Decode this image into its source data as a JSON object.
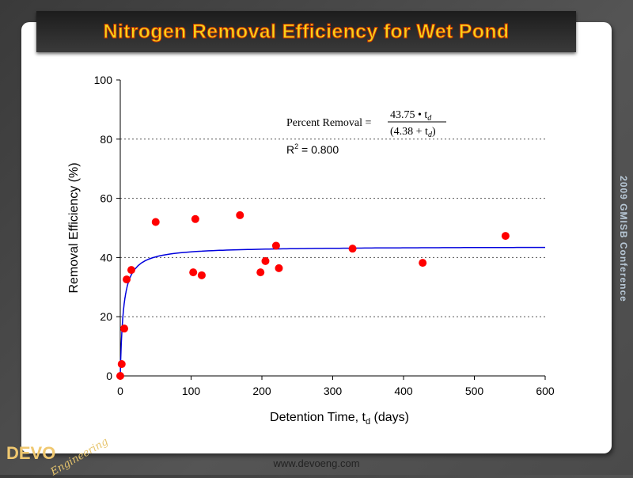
{
  "slide": {
    "title": "Nitrogen Removal  Efficiency for Wet Pond",
    "side_text": "2009 GMISB Conference",
    "url": "www.devoeng.com",
    "logo_text": "DEVO",
    "logo_script": "Engineering"
  },
  "chart_data": {
    "type": "scatter",
    "xlabel": "Detention Time, t",
    "xlabel_sub": "d",
    "xlabel_suffix": " (days)",
    "ylabel": "Removal Efficiency (%)",
    "xlim": [
      0,
      600
    ],
    "ylim": [
      0,
      100
    ],
    "xticks": [
      0,
      100,
      200,
      300,
      400,
      500,
      600
    ],
    "yticks": [
      0,
      20,
      40,
      60,
      80,
      100
    ],
    "grid": "horizontal dotted",
    "points": [
      [
        0,
        0
      ],
      [
        2,
        4
      ],
      [
        5.6,
        16
      ],
      [
        9,
        32.6
      ],
      [
        15.6,
        35.8
      ],
      [
        50,
        52
      ],
      [
        103,
        35
      ],
      [
        106,
        53
      ],
      [
        115,
        34
      ],
      [
        169,
        54.3
      ],
      [
        198,
        35
      ],
      [
        205,
        38.8
      ],
      [
        220,
        44
      ],
      [
        224,
        36.4
      ],
      [
        328,
        43
      ],
      [
        427,
        38.2
      ],
      [
        544,
        47.3
      ]
    ],
    "fit": {
      "a": 43.75,
      "b": 4.38
    },
    "equation_label": "Percent Removal =",
    "equation_num": "43.75 • t",
    "equation_den": "(4.38 + t",
    "r2_label": "R",
    "r2_value": " = 0.800",
    "colors": {
      "points": "#ff0000",
      "fit": "#0000dd"
    }
  }
}
